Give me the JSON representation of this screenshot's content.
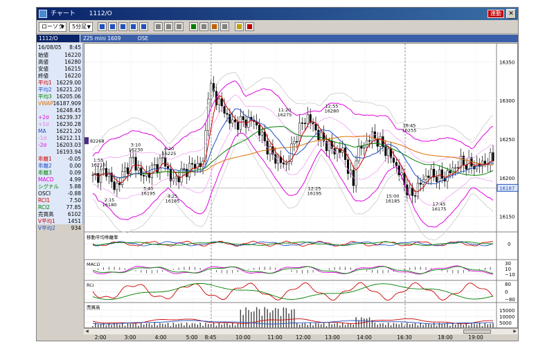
{
  "window": {
    "title": "チャート",
    "symbol_code": "1112/O",
    "link_badge": "連動",
    "close_label": "✕"
  },
  "toolbar": {
    "chart_type": "ローソク",
    "interval": "5分足",
    "buttons": [
      "chart-edit-icon",
      "chart-compare-icon",
      "chart-list-icon",
      "chart-grid-icon",
      "chart-export-icon",
      "period-icon",
      "trend-icon",
      "mark-icon",
      "draw-icon",
      "pen-icon",
      "fib-icon",
      "erase-icon",
      "zoom-icon",
      "clear-icon"
    ]
  },
  "symbolbar": {
    "code": "1112/O",
    "name": "225 mini 1609",
    "exchange": "OSE"
  },
  "datapanel": {
    "header_date": "16/08/05",
    "header_time": "8:45",
    "rows": [
      {
        "label": "始値",
        "value": "16220",
        "color": "#000000"
      },
      {
        "label": "高値",
        "value": "16280",
        "color": "#000000"
      },
      {
        "label": "安値",
        "value": "16215",
        "color": "#000000"
      },
      {
        "label": "終値",
        "value": "16220",
        "color": "#000000"
      },
      {
        "label": "平均1",
        "value": "16229.00",
        "color": "#cc0000"
      },
      {
        "label": "平均2",
        "value": "16221.20",
        "color": "#2050c0"
      },
      {
        "label": "平均3",
        "value": "16205.06",
        "color": "#008000"
      },
      {
        "label": "VWAP",
        "value": "16187.909",
        "color": "#e07000"
      },
      {
        "label": "",
        "value": "16248.45",
        "color": "#000000"
      },
      {
        "label": "+2σ",
        "value": "16239.37",
        "color": "#e000e0"
      },
      {
        "label": "+1σ",
        "value": "16230.28",
        "color": "#e080e0"
      },
      {
        "label": "MA",
        "value": "16221.20",
        "color": "#2050c0"
      },
      {
        "label": "-1σ",
        "value": "16212.11",
        "color": "#e080e0"
      },
      {
        "label": "-2σ",
        "value": "16203.03",
        "color": "#e000e0"
      },
      {
        "label": "",
        "value": "16193.94",
        "color": "#000000"
      },
      {
        "label": "乖離1",
        "value": "-0.05",
        "color": "#cc0000"
      },
      {
        "label": "乖離2",
        "value": "0.00",
        "color": "#2050c0"
      },
      {
        "label": "乖離3",
        "value": "0.09",
        "color": "#008000"
      },
      {
        "label": "MACD",
        "value": "4.99",
        "color": "#e000e0"
      },
      {
        "label": "シグナル",
        "value": "5.88",
        "color": "#008000"
      },
      {
        "label": "OSCI",
        "value": "-0.88",
        "color": "#000000"
      },
      {
        "label": "RCI1",
        "value": "7.50",
        "color": "#cc0000"
      },
      {
        "label": "RCI2",
        "value": "77.85",
        "color": "#008000"
      },
      {
        "label": "売買高",
        "value": "6102",
        "color": "#000000"
      },
      {
        "label": "V平均1",
        "value": "1451",
        "color": "#cc0000"
      },
      {
        "label": "V平均2",
        "value": "934",
        "color": "#2050c0"
      }
    ]
  },
  "price_axis": {
    "ticks": [
      "16350",
      "16300",
      "16250",
      "16200",
      "16150"
    ],
    "current_price": "16187",
    "left_marker": "82268"
  },
  "annotations": [
    {
      "time": "1:55",
      "price": "16210"
    },
    {
      "time": "2:15",
      "price": "16180"
    },
    {
      "time": "3:10",
      "price": "16230"
    },
    {
      "time": "3:40",
      "price": "16195"
    },
    {
      "time": "4:20",
      "price": "16225"
    },
    {
      "time": "4:25",
      "price": "16185"
    },
    {
      "time": "11:20",
      "price": "16275"
    },
    {
      "time": "12:25",
      "price": "16195"
    },
    {
      "time": "12:55",
      "price": "16280"
    },
    {
      "time": "15:00",
      "price": "16185"
    },
    {
      "time": "16:45",
      "price": "16255"
    },
    {
      "time": "17:45",
      "price": "16175"
    }
  ],
  "panels": {
    "deviation": {
      "title": "移動平均乖離率",
      "ticks": [
        "0"
      ]
    },
    "macd": {
      "title": "MACD",
      "ticks": [
        "30",
        "10",
        "−10"
      ]
    },
    "rci": {
      "title": "RCI",
      "ticks": [
        "80",
        "0",
        "−80"
      ]
    },
    "volume": {
      "title": "売買高",
      "ticks": [
        "15000",
        "10000",
        "5000"
      ]
    }
  },
  "time_axis": [
    "2:00",
    "3:00",
    "4:00",
    "5:00",
    "8:45",
    "10:00",
    "11:00",
    "12:00",
    "13:00",
    "14:00",
    "16:30",
    "18:00",
    "19:00"
  ],
  "colors": {
    "sma1": "#cc0000",
    "sma2": "#2050c0",
    "sma3": "#008000",
    "vwap": "#e07000",
    "bb2": "#e000e0",
    "bb1": "#f0a0f0",
    "bb3": "#c8c8c8"
  }
}
